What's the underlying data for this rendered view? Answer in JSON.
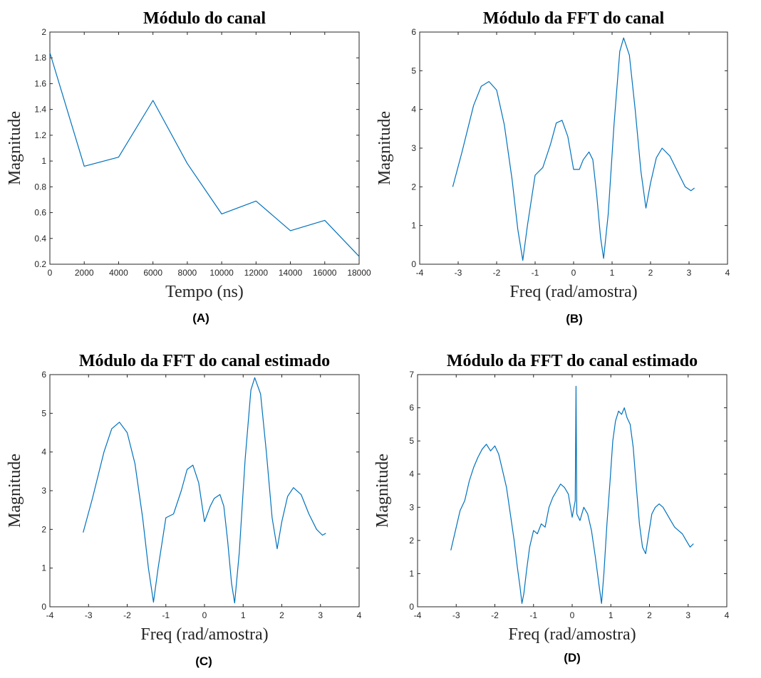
{
  "colors": {
    "line": "#0072bd",
    "axes": "#262626"
  },
  "chart_data": [
    {
      "id": "A",
      "type": "line",
      "title": "Módulo do canal",
      "xlabel": "Tempo (ns)",
      "ylabel": "Magnitude",
      "caption": "(A)",
      "xlim": [
        0,
        18000
      ],
      "ylim": [
        0.2,
        2
      ],
      "xticks": [
        0,
        2000,
        4000,
        6000,
        8000,
        10000,
        12000,
        14000,
        16000,
        18000
      ],
      "yticks": [
        0.2,
        0.4,
        0.6,
        0.8,
        1,
        1.2,
        1.4,
        1.6,
        1.8,
        2
      ],
      "xtick_labels": [
        "0",
        "2000",
        "4000",
        "6000",
        "8000",
        "10000",
        "12000",
        "14000",
        "16000",
        "18000"
      ],
      "ytick_labels": [
        "0.2",
        "0.4",
        "0.6",
        "0.8",
        "1",
        "1.2",
        "1.4",
        "1.6",
        "1.8",
        "2"
      ],
      "grid": false,
      "series": [
        {
          "x": [
            0,
            2000,
            4000,
            6000,
            8000,
            10000,
            12000,
            14000,
            16000,
            18000
          ],
          "y": [
            1.84,
            0.96,
            1.03,
            1.47,
            0.98,
            0.59,
            0.69,
            0.46,
            0.54,
            0.26
          ]
        }
      ]
    },
    {
      "id": "B",
      "type": "line",
      "title": "Módulo da FFT do canal",
      "xlabel": "Freq (rad/amostra)",
      "ylabel": "Magnitude",
      "caption": "(B)",
      "xlim": [
        -4,
        4
      ],
      "ylim": [
        0,
        6
      ],
      "xticks": [
        -4,
        -3,
        -2,
        -1,
        0,
        1,
        2,
        3,
        4
      ],
      "yticks": [
        0,
        1,
        2,
        3,
        4,
        5,
        6
      ],
      "xtick_labels": [
        "-4",
        "-3",
        "-2",
        "-1",
        "0",
        "1",
        "2",
        "3",
        "4"
      ],
      "ytick_labels": [
        "0",
        "1",
        "2",
        "3",
        "4",
        "5",
        "6"
      ],
      "grid": false,
      "series": [
        {
          "x": [
            -3.14,
            -2.9,
            -2.6,
            -2.4,
            -2.2,
            -2.0,
            -1.8,
            -1.6,
            -1.45,
            -1.32,
            -1.2,
            -1.0,
            -0.8,
            -0.6,
            -0.45,
            -0.3,
            -0.15,
            0.0,
            0.15,
            0.25,
            0.4,
            0.5,
            0.6,
            0.7,
            0.78,
            0.9,
            1.05,
            1.2,
            1.3,
            1.45,
            1.6,
            1.75,
            1.88,
            2.0,
            2.15,
            2.3,
            2.5,
            2.7,
            2.9,
            3.05,
            3.14
          ],
          "y": [
            2.0,
            2.9,
            4.1,
            4.6,
            4.72,
            4.5,
            3.6,
            2.2,
            0.9,
            0.1,
            1.0,
            2.3,
            2.5,
            3.1,
            3.65,
            3.72,
            3.3,
            2.45,
            2.45,
            2.7,
            2.9,
            2.7,
            1.8,
            0.7,
            0.15,
            1.3,
            3.6,
            5.5,
            5.85,
            5.4,
            4.0,
            2.4,
            1.45,
            2.1,
            2.75,
            3.0,
            2.8,
            2.4,
            2.0,
            1.9,
            1.97
          ]
        }
      ]
    },
    {
      "id": "C",
      "type": "line",
      "title": "Módulo da FFT do canal estimado",
      "xlabel": "Freq (rad/amostra)",
      "ylabel": "Magnitude",
      "caption": "(C)",
      "xlim": [
        -4,
        4
      ],
      "ylim": [
        0,
        6
      ],
      "xticks": [
        -4,
        -3,
        -2,
        -1,
        0,
        1,
        2,
        3,
        4
      ],
      "yticks": [
        0,
        1,
        2,
        3,
        4,
        5,
        6
      ],
      "xtick_labels": [
        "-4",
        "-3",
        "-2",
        "-1",
        "0",
        "1",
        "2",
        "3",
        "4"
      ],
      "ytick_labels": [
        "0",
        "1",
        "2",
        "3",
        "4",
        "5",
        "6"
      ],
      "grid": false,
      "series": [
        {
          "x": [
            -3.14,
            -2.9,
            -2.6,
            -2.4,
            -2.2,
            -2.0,
            -1.8,
            -1.6,
            -1.45,
            -1.32,
            -1.2,
            -1.0,
            -0.8,
            -0.6,
            -0.45,
            -0.3,
            -0.15,
            0.0,
            0.15,
            0.25,
            0.4,
            0.5,
            0.6,
            0.7,
            0.78,
            0.9,
            1.05,
            1.2,
            1.3,
            1.45,
            1.6,
            1.75,
            1.88,
            2.0,
            2.15,
            2.3,
            2.5,
            2.7,
            2.9,
            3.05,
            3.14
          ],
          "y": [
            1.92,
            2.8,
            4.0,
            4.6,
            4.77,
            4.5,
            3.7,
            2.3,
            1.0,
            0.12,
            1.0,
            2.3,
            2.4,
            3.0,
            3.55,
            3.66,
            3.2,
            2.2,
            2.6,
            2.8,
            2.9,
            2.6,
            1.7,
            0.6,
            0.1,
            1.4,
            3.8,
            5.6,
            5.92,
            5.5,
            4.0,
            2.3,
            1.5,
            2.2,
            2.85,
            3.08,
            2.9,
            2.4,
            2.0,
            1.85,
            1.9
          ]
        }
      ]
    },
    {
      "id": "D",
      "type": "line",
      "title": "Módulo da FFT do canal estimado",
      "xlabel": "Freq (rad/amostra)",
      "ylabel": "Magnitude",
      "caption": "(D)",
      "xlim": [
        -4,
        4
      ],
      "ylim": [
        0,
        7
      ],
      "xticks": [
        -4,
        -3,
        -2,
        -1,
        0,
        1,
        2,
        3,
        4
      ],
      "yticks": [
        0,
        1,
        2,
        3,
        4,
        5,
        6,
        7
      ],
      "xtick_labels": [
        "-4",
        "-3",
        "-2",
        "-1",
        "0",
        "1",
        "2",
        "3",
        "4"
      ],
      "ytick_labels": [
        "0",
        "1",
        "2",
        "3",
        "4",
        "5",
        "6",
        "7"
      ],
      "grid": false,
      "series": [
        {
          "x": [
            -3.14,
            -3.02,
            -2.9,
            -2.78,
            -2.66,
            -2.55,
            -2.44,
            -2.33,
            -2.22,
            -2.11,
            -2.0,
            -1.9,
            -1.8,
            -1.7,
            -1.6,
            -1.5,
            -1.42,
            -1.35,
            -1.3,
            -1.25,
            -1.18,
            -1.1,
            -1.0,
            -0.9,
            -0.8,
            -0.7,
            -0.6,
            -0.5,
            -0.4,
            -0.3,
            -0.2,
            -0.1,
            0.0,
            0.08,
            0.1,
            0.12,
            0.2,
            0.3,
            0.4,
            0.5,
            0.6,
            0.7,
            0.76,
            0.82,
            0.9,
            0.98,
            1.05,
            1.12,
            1.2,
            1.28,
            1.35,
            1.42,
            1.5,
            1.58,
            1.66,
            1.74,
            1.82,
            1.9,
            1.98,
            2.06,
            2.15,
            2.25,
            2.35,
            2.45,
            2.55,
            2.65,
            2.75,
            2.85,
            2.95,
            3.05,
            3.14
          ],
          "y": [
            1.7,
            2.3,
            2.9,
            3.2,
            3.8,
            4.2,
            4.5,
            4.75,
            4.9,
            4.7,
            4.85,
            4.6,
            4.1,
            3.6,
            2.8,
            2.0,
            1.2,
            0.6,
            0.1,
            0.4,
            1.1,
            1.8,
            2.3,
            2.2,
            2.5,
            2.4,
            3.0,
            3.3,
            3.5,
            3.7,
            3.6,
            3.4,
            2.7,
            3.2,
            6.65,
            2.8,
            2.6,
            3.0,
            2.8,
            2.3,
            1.5,
            0.6,
            0.1,
            1.0,
            2.5,
            3.8,
            5.0,
            5.6,
            5.9,
            5.8,
            6.0,
            5.7,
            5.5,
            4.8,
            3.6,
            2.5,
            1.8,
            1.6,
            2.2,
            2.8,
            3.0,
            3.1,
            3.0,
            2.8,
            2.6,
            2.4,
            2.3,
            2.2,
            2.0,
            1.8,
            1.9
          ]
        }
      ]
    }
  ]
}
